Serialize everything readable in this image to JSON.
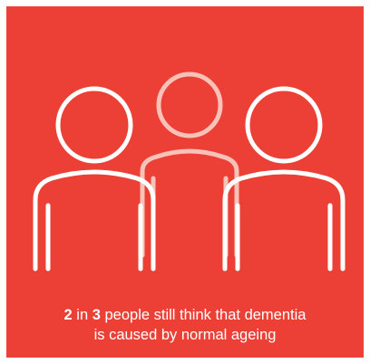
{
  "colors": {
    "background": "#ec4036",
    "outline_front": "#ffffff",
    "outline_back": "#f8c2b8"
  },
  "illustration": {
    "icon": "three-people-outline-icon"
  },
  "caption": {
    "count": "2",
    "word_in": " in ",
    "total": "3",
    "line1_rest": " people still think that dementia",
    "line2": "is caused by normal ageing"
  }
}
